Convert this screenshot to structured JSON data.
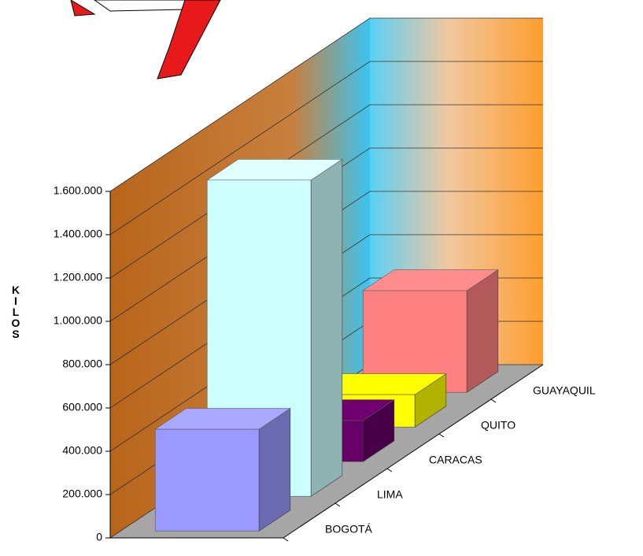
{
  "chart_data": {
    "type": "bar3d",
    "y_label": "KILOS",
    "categories": [
      "BOGOTÁ",
      "LIMA",
      "CARACAS",
      "QUITO",
      "GUAYAQUIL"
    ],
    "values": [
      470000,
      1460000,
      190000,
      150000,
      470000
    ],
    "colors": [
      "#9999ff",
      "#ccffff",
      "#660066",
      "#ffff00",
      "#ff8080"
    ],
    "ylim": [
      0,
      1600000
    ],
    "yticks": [
      {
        "value": 0,
        "label": "0"
      },
      {
        "value": 200000,
        "label": "200.000"
      },
      {
        "value": 400000,
        "label": "400.000"
      },
      {
        "value": 600000,
        "label": "600.000"
      },
      {
        "value": 800000,
        "label": "800.000"
      },
      {
        "value": 1000000,
        "label": "1.000.000"
      },
      {
        "value": 1200000,
        "label": "1.200.000"
      },
      {
        "value": 1400000,
        "label": "1.400.000"
      },
      {
        "value": 1600000,
        "label": "1.600.000"
      }
    ],
    "grid": true
  }
}
